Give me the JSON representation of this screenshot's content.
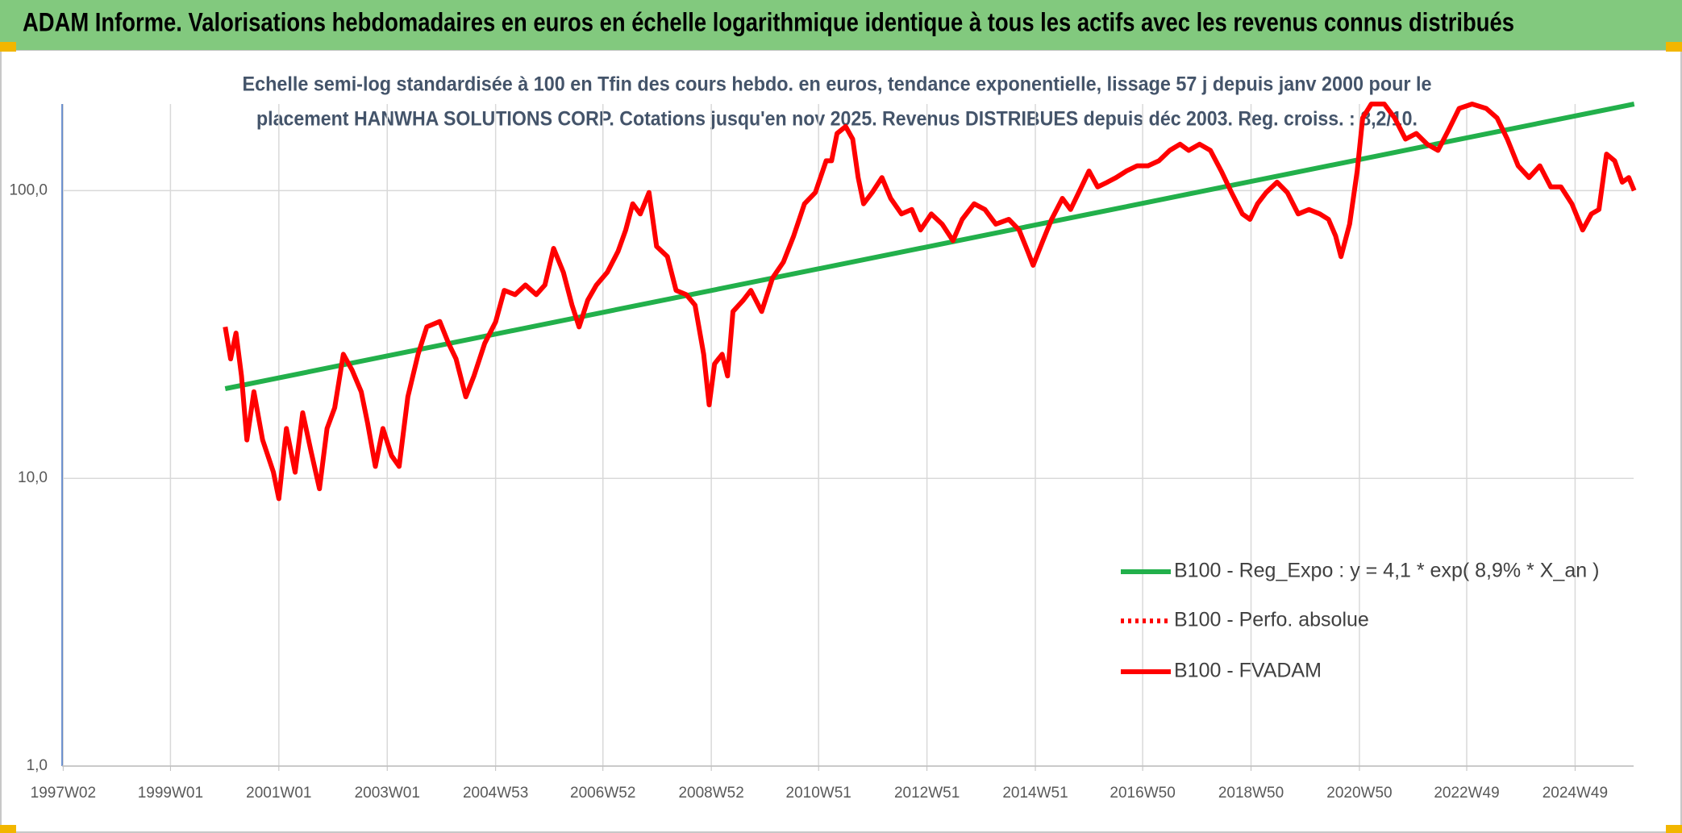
{
  "chart_data": {
    "type": "line",
    "title": "ADAM Informe. Valorisations hebdomadaires en euros en échelle logarithmique identique à tous les actifs avec les revenus connus distribués",
    "subtitle": [
      "Echelle semi-log standardisée à 100 en Tfin des cours hebdo. en euros, tendance exponentielle, lissage 57 j depuis janv 2000 pour le",
      "placement HANWHA SOLUTIONS CORP. Cotations jusqu'en nov 2025. Revenus DISTRIBUES depuis déc 2003. Reg. croiss. : 8,2/10."
    ],
    "log_scale": true,
    "grid": true,
    "legend": "right",
    "xlim": [
      1997,
      2026
    ],
    "xticks": [
      {
        "value": 1997.02,
        "label": "1997W02"
      },
      {
        "value": 1999,
        "label": "1999W01"
      },
      {
        "value": 2001,
        "label": "2001W01"
      },
      {
        "value": 2003,
        "label": "2003W01"
      },
      {
        "value": 2005,
        "label": "2004W53"
      },
      {
        "value": 2006.98,
        "label": "2006W52"
      },
      {
        "value": 2008.98,
        "label": "2008W52"
      },
      {
        "value": 2010.96,
        "label": "2010W51"
      },
      {
        "value": 2012.96,
        "label": "2012W51"
      },
      {
        "value": 2014.96,
        "label": "2014W51"
      },
      {
        "value": 2016.94,
        "label": "2016W50"
      },
      {
        "value": 2018.94,
        "label": "2018W50"
      },
      {
        "value": 2020.94,
        "label": "2020W50"
      },
      {
        "value": 2022.92,
        "label": "2022W49"
      },
      {
        "value": 2024.92,
        "label": "2024W49"
      }
    ],
    "ylim": [
      1,
      200
    ],
    "yticks": [
      {
        "value": 1,
        "label": "1,0"
      },
      {
        "value": 10,
        "label": "10,0"
      },
      {
        "value": 100,
        "label": "100,0"
      }
    ],
    "series": [
      {
        "name": "B100 - Reg_Expo : y = 4,1 * exp( 8,9% *  X_an )",
        "color": "#22b04b",
        "style": "solid",
        "x": [
          2000.01,
          2026.01
        ],
        "values": [
          20.5,
          200
        ]
      },
      {
        "name": "B100 - Perfo. absolue",
        "color": "#ff0000",
        "style": "dotted",
        "x": [],
        "values": []
      },
      {
        "name": "B100 - FVADAM",
        "color": "#ff0000",
        "style": "solid",
        "x": [
          2000.01,
          2000.11,
          2000.21,
          2000.31,
          2000.41,
          2000.54,
          2000.7,
          2000.9,
          2001.0,
          2001.14,
          2001.3,
          2001.44,
          2001.59,
          2001.75,
          2001.89,
          2002.03,
          2002.19,
          2002.35,
          2002.52,
          2002.64,
          2002.78,
          2002.92,
          2003.08,
          2003.22,
          2003.38,
          2003.57,
          2003.73,
          2003.97,
          2004.13,
          2004.27,
          2004.45,
          2004.6,
          2004.8,
          2005.0,
          2005.16,
          2005.36,
          2005.55,
          2005.75,
          2005.91,
          2006.07,
          2006.25,
          2006.41,
          2006.54,
          2006.7,
          2006.86,
          2007.06,
          2007.26,
          2007.4,
          2007.53,
          2007.67,
          2007.83,
          2007.97,
          2008.17,
          2008.33,
          2008.52,
          2008.68,
          2008.84,
          2008.94,
          2009.04,
          2009.18,
          2009.28,
          2009.38,
          2009.57,
          2009.71,
          2009.91,
          2010.11,
          2010.31,
          2010.5,
          2010.7,
          2010.9,
          2011.1,
          2011.2,
          2011.3,
          2011.46,
          2011.59,
          2011.69,
          2011.79,
          2011.95,
          2012.13,
          2012.29,
          2012.49,
          2012.68,
          2012.84,
          2013.04,
          2013.24,
          2013.44,
          2013.61,
          2013.83,
          2014.03,
          2014.23,
          2014.47,
          2014.66,
          2014.82,
          2014.92,
          2015.1,
          2015.26,
          2015.46,
          2015.61,
          2015.81,
          2015.95,
          2016.11,
          2016.29,
          2016.45,
          2016.64,
          2016.84,
          2017.04,
          2017.24,
          2017.44,
          2017.63,
          2017.79,
          2017.99,
          2018.19,
          2018.39,
          2018.58,
          2018.78,
          2018.92,
          2019.06,
          2019.22,
          2019.42,
          2019.61,
          2019.81,
          2020.01,
          2020.21,
          2020.37,
          2020.5,
          2020.6,
          2020.76,
          2020.9,
          2021.0,
          2021.16,
          2021.4,
          2021.59,
          2021.79,
          2021.99,
          2022.19,
          2022.39,
          2022.58,
          2022.78,
          2023.02,
          2023.28,
          2023.48,
          2023.67,
          2023.87,
          2024.07,
          2024.27,
          2024.47,
          2024.66,
          2024.86,
          2025.06,
          2025.22,
          2025.36,
          2025.5,
          2025.65,
          2025.79,
          2025.91,
          2026.01
        ],
        "values": [
          33.6,
          26,
          32,
          22.7,
          13.6,
          20,
          13.6,
          10.5,
          8.5,
          14.9,
          10.5,
          16.9,
          12.5,
          9.2,
          14.9,
          17.6,
          27,
          23.8,
          20,
          15.5,
          11,
          14.9,
          12,
          11,
          19.2,
          27,
          33.6,
          35.1,
          29.5,
          26,
          19.2,
          22.7,
          29.5,
          35,
          45,
          43.5,
          47,
          43.5,
          47,
          63,
          52,
          40,
          33.6,
          41.6,
          47,
          52,
          61.5,
          73,
          90,
          83,
          98.5,
          64,
          59,
          45,
          43.5,
          40,
          27,
          18,
          25,
          27,
          22.7,
          38,
          41.6,
          45,
          38,
          49.7,
          56.4,
          69.6,
          90,
          98.5,
          127,
          127,
          158,
          167,
          151,
          111,
          90,
          98.5,
          111,
          94,
          83,
          86,
          73,
          83,
          76.5,
          67,
          79.5,
          90,
          86,
          76.5,
          79.5,
          73,
          61.5,
          55,
          67,
          79.5,
          94,
          86,
          103,
          117,
          103,
          107,
          111,
          117,
          122,
          122,
          127,
          138,
          145,
          138,
          145,
          138,
          117,
          98.5,
          83,
          79.5,
          90,
          98.5,
          107,
          98.5,
          83,
          86,
          83,
          79.5,
          69.6,
          59,
          76.5,
          117,
          179,
          200,
          200,
          179,
          151,
          158,
          145,
          138,
          162,
          193,
          200,
          193,
          179,
          151,
          122,
          111,
          122,
          103,
          103,
          90,
          73,
          83,
          86,
          134,
          127,
          107,
          111,
          100
        ]
      }
    ]
  }
}
